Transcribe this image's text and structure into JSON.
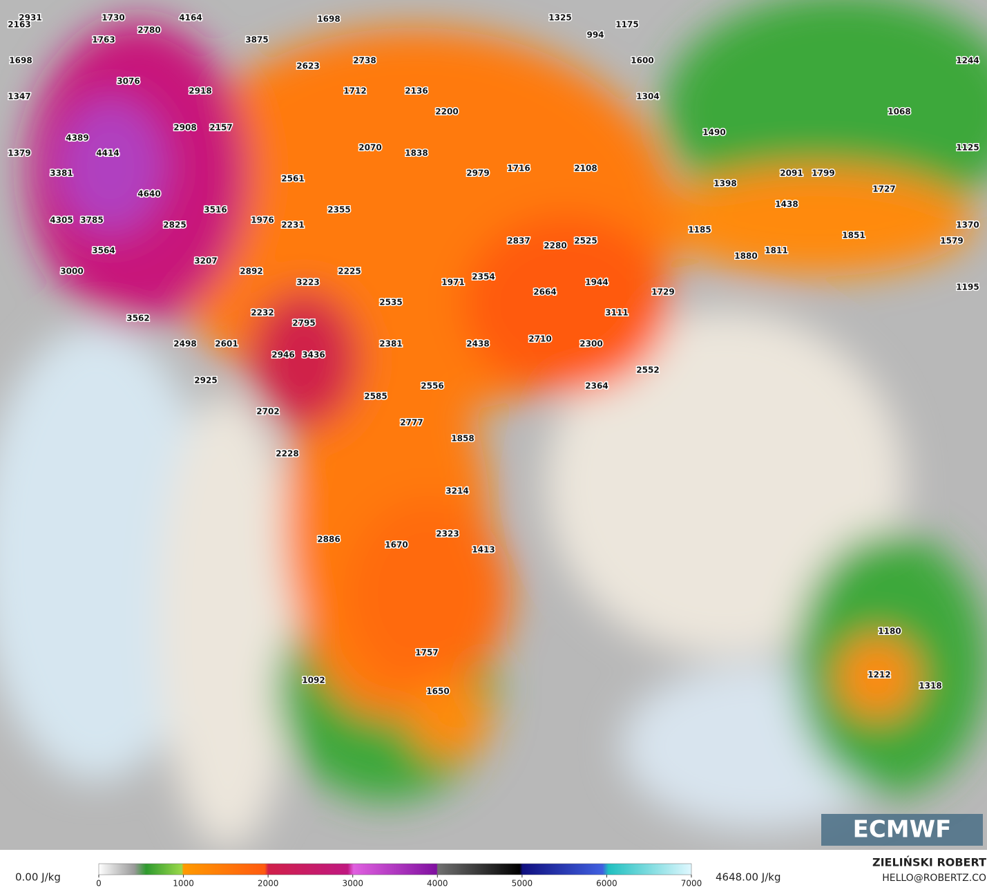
{
  "map": {
    "labels": [
      "2931",
      "2163",
      "1730",
      "4164",
      "1698",
      "1325",
      "994",
      "1175",
      "1763",
      "2780",
      "3875",
      "2738",
      "1698",
      "2623",
      "1600",
      "1244",
      "3076",
      "2918",
      "1712",
      "2136",
      "1347",
      "1304",
      "2200",
      "1068",
      "2908",
      "2157",
      "1490",
      "4389",
      "2070",
      "1838",
      "1379",
      "4414",
      "1125",
      "1716",
      "2108",
      "2979",
      "2091",
      "1799",
      "3381",
      "2561",
      "1398",
      "1727",
      "4640",
      "2355",
      "1438",
      "3516",
      "4305",
      "3785",
      "1976",
      "2231",
      "2825",
      "1185",
      "1370",
      "1851",
      "2837",
      "2280",
      "2525",
      "1579",
      "3564",
      "1811",
      "1880",
      "3207",
      "2892",
      "2225",
      "3000",
      "2354",
      "1971",
      "3223",
      "1944",
      "2664",
      "1729",
      "1195",
      "2535",
      "3111",
      "2232",
      "3562",
      "2795",
      "2710",
      "2438",
      "2300",
      "2498",
      "2601",
      "2381",
      "2946",
      "3436",
      "2552",
      "2925",
      "2556",
      "2364",
      "2585",
      "2777",
      "2702",
      "1858",
      "2228",
      "3214",
      "2323",
      "2886",
      "1670",
      "1413",
      "1180",
      "1212",
      "1318",
      "1757",
      "1092",
      "1650"
    ]
  },
  "legend": {
    "min_label": "0.00 J/kg",
    "max_label": "4648.00 J/kg",
    "range": [
      0,
      7000
    ],
    "ticks": [
      0,
      1000,
      2000,
      3000,
      4000,
      5000,
      6000,
      7000
    ]
  },
  "credit": {
    "name": "ZIELIŃSKI ROBERT",
    "email": "HELLO@ROBERTZ.CO"
  },
  "logo": "ECMWF"
}
